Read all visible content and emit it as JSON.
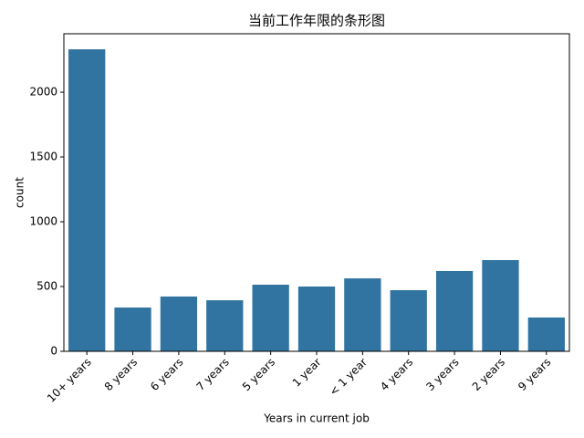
{
  "chart_data": {
    "type": "bar",
    "title": "当前工作年限的条形图",
    "x_label": "Years in current job",
    "y_label": "count",
    "categories": [
      "10+ years",
      "8 years",
      "6 years",
      "7 years",
      "5 years",
      "1 year",
      "< 1 year",
      "4 years",
      "3 years",
      "2 years",
      "9 years"
    ],
    "values": [
      2331,
      338,
      423,
      394,
      514,
      500,
      563,
      472,
      620,
      704,
      261
    ],
    "color": "#3274a1",
    "ylim": [
      0,
      2451
    ],
    "yticks": [
      0,
      500,
      1000,
      1500,
      2000
    ],
    "grid": false
  }
}
